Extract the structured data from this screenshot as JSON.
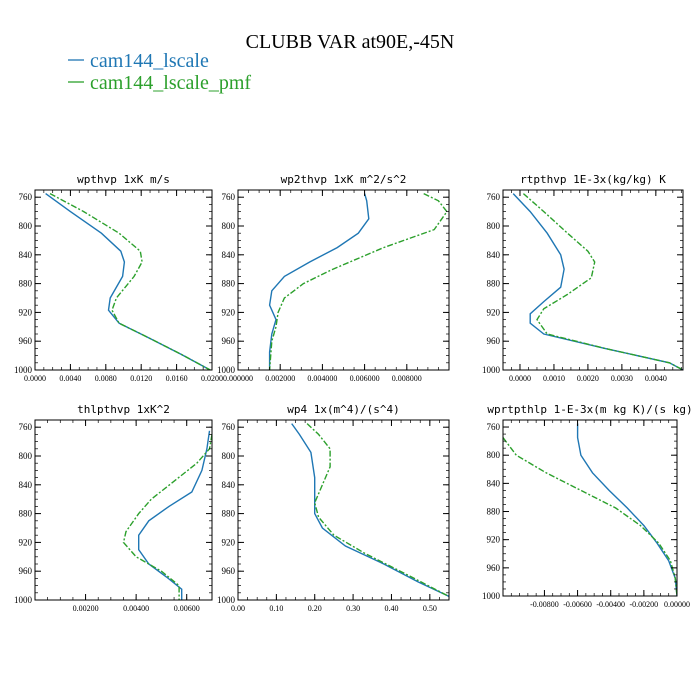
{
  "figure": {
    "title": "CLUBB VAR at90E,-45N"
  },
  "legend": [
    {
      "label": "cam144_lscale",
      "color": "#1f77b4",
      "dash": "solid"
    },
    {
      "label": "cam144_lscale_pmf",
      "color": "#2ca02c",
      "dash": "dashdot"
    }
  ],
  "chart_data": [
    {
      "type": "line",
      "title": "wpthvp  1xK m/s",
      "xlim": [
        0,
        0.02
      ],
      "ylim": [
        1000,
        750
      ],
      "xticks": [
        0,
        0.004,
        0.008,
        0.012,
        0.016,
        0.02
      ],
      "xticklabels": [
        "0.0000",
        "0.0040",
        "0.0080",
        "0.0120",
        "0.0160",
        "0.0200"
      ],
      "yticks": [
        760,
        800,
        840,
        880,
        920,
        960,
        1000
      ],
      "series": [
        {
          "name": "cam144_lscale",
          "points": [
            [
              0.0012,
              755
            ],
            [
              0.004,
              780
            ],
            [
              0.0075,
              810
            ],
            [
              0.0097,
              835
            ],
            [
              0.0101,
              850
            ],
            [
              0.0099,
              870
            ],
            [
              0.0085,
              900
            ],
            [
              0.0083,
              917
            ],
            [
              0.0095,
              935
            ],
            [
              0.0128,
              955
            ],
            [
              0.0165,
              978
            ],
            [
              0.0198,
              1000
            ]
          ]
        },
        {
          "name": "cam144_lscale_pmf",
          "points": [
            [
              0.0017,
              755
            ],
            [
              0.0055,
              780
            ],
            [
              0.0095,
              810
            ],
            [
              0.0119,
              835
            ],
            [
              0.0121,
              850
            ],
            [
              0.0112,
              870
            ],
            [
              0.0092,
              900
            ],
            [
              0.0087,
              917
            ],
            [
              0.0095,
              935
            ],
            [
              0.0128,
              955
            ],
            [
              0.0165,
              978
            ],
            [
              0.0198,
              1000
            ]
          ]
        }
      ]
    },
    {
      "type": "line",
      "title": "wp2thvp  1xK m^2/s^2",
      "xlim": [
        0,
        0.01
      ],
      "ylim": [
        1000,
        750
      ],
      "xticks": [
        0,
        0.002,
        0.004,
        0.006,
        0.008
      ],
      "xticklabels": [
        "0.000000",
        "0.002000",
        "0.004000",
        "0.006000",
        "0.008000"
      ],
      "yticks": [
        760,
        800,
        840,
        880,
        920,
        960,
        1000
      ],
      "series": [
        {
          "name": "cam144_lscale",
          "points": [
            [
              0.006,
              755
            ],
            [
              0.0061,
              765
            ],
            [
              0.0062,
              790
            ],
            [
              0.0057,
              810
            ],
            [
              0.0047,
              830
            ],
            [
              0.0034,
              850
            ],
            [
              0.0022,
              870
            ],
            [
              0.0016,
              890
            ],
            [
              0.0015,
              910
            ],
            [
              0.0018,
              930
            ],
            [
              0.0016,
              950
            ],
            [
              0.0015,
              975
            ],
            [
              0.0015,
              1000
            ]
          ]
        },
        {
          "name": "cam144_lscale_pmf",
          "points": [
            [
              0.0088,
              755
            ],
            [
              0.0095,
              765
            ],
            [
              0.0099,
              780
            ],
            [
              0.0093,
              805
            ],
            [
              0.0069,
              830
            ],
            [
              0.0045,
              860
            ],
            [
              0.0031,
              880
            ],
            [
              0.0022,
              900
            ],
            [
              0.0019,
              920
            ],
            [
              0.0018,
              940
            ],
            [
              0.0016,
              960
            ],
            [
              0.0015,
              1000
            ]
          ]
        }
      ]
    },
    {
      "type": "line",
      "title": "rtpthvp  1E-3x(kg/kg) K",
      "xlim": [
        -0.0005,
        0.0048
      ],
      "ylim": [
        1000,
        750
      ],
      "xticks": [
        0,
        0.001,
        0.002,
        0.003,
        0.004
      ],
      "xticklabels": [
        "0.0000",
        "0.0010",
        "0.0020",
        "0.0030",
        "0.0040"
      ],
      "yticks": [
        760,
        800,
        840,
        880,
        920,
        960,
        1000
      ],
      "series": [
        {
          "name": "cam144_lscale",
          "points": [
            [
              -0.0002,
              755
            ],
            [
              0.0003,
              780
            ],
            [
              0.0008,
              810
            ],
            [
              0.0012,
              840
            ],
            [
              0.0013,
              860
            ],
            [
              0.0012,
              885
            ],
            [
              0.0007,
              905
            ],
            [
              0.0003,
              922
            ],
            [
              0.0003,
              935
            ],
            [
              0.0007,
              950
            ],
            [
              0.0025,
              970
            ],
            [
              0.0044,
              990
            ],
            [
              0.0048,
              1000
            ]
          ]
        },
        {
          "name": "cam144_lscale_pmf",
          "points": [
            [
              0.0001,
              755
            ],
            [
              0.0007,
              780
            ],
            [
              0.0014,
              810
            ],
            [
              0.002,
              835
            ],
            [
              0.0022,
              850
            ],
            [
              0.0021,
              872
            ],
            [
              0.0014,
              895
            ],
            [
              0.0007,
              915
            ],
            [
              0.0005,
              930
            ],
            [
              0.0008,
              950
            ],
            [
              0.0025,
              970
            ],
            [
              0.0044,
              990
            ],
            [
              0.0048,
              1000
            ]
          ]
        }
      ]
    },
    {
      "type": "line",
      "title": "thlpthvp  1xK^2",
      "xlim": [
        0,
        0.007
      ],
      "ylim": [
        1000,
        750
      ],
      "xticks": [
        0.002,
        0.004,
        0.006
      ],
      "xticklabels": [
        "0.00200",
        "0.00400",
        "0.00600"
      ],
      "yticks": [
        760,
        800,
        840,
        880,
        920,
        960,
        1000
      ],
      "series": [
        {
          "name": "cam144_lscale",
          "points": [
            [
              0.0069,
              765
            ],
            [
              0.0068,
              790
            ],
            [
              0.0066,
              820
            ],
            [
              0.0062,
              850
            ],
            [
              0.0053,
              870
            ],
            [
              0.0045,
              890
            ],
            [
              0.0041,
              910
            ],
            [
              0.0041,
              930
            ],
            [
              0.0045,
              950
            ],
            [
              0.0052,
              968
            ],
            [
              0.0058,
              985
            ],
            [
              0.0058,
              1000
            ]
          ]
        },
        {
          "name": "cam144_lscale_pmf",
          "points": [
            [
              0.007,
              770
            ],
            [
              0.0069,
              790
            ],
            [
              0.0064,
              810
            ],
            [
              0.0055,
              835
            ],
            [
              0.0046,
              860
            ],
            [
              0.0041,
              880
            ],
            [
              0.0036,
              905
            ],
            [
              0.0035,
              920
            ],
            [
              0.004,
              940
            ],
            [
              0.005,
              960
            ],
            [
              0.0057,
              980
            ],
            [
              0.0057,
              1000
            ]
          ]
        }
      ]
    },
    {
      "type": "line",
      "title": "wp4  1x(m^4)/(s^4)",
      "xlim": [
        0,
        0.55
      ],
      "ylim": [
        1000,
        750
      ],
      "xticks": [
        0,
        0.1,
        0.2,
        0.3,
        0.4,
        0.5
      ],
      "xticklabels": [
        "0.00",
        "0.10",
        "0.20",
        "0.30",
        "0.40",
        "0.50"
      ],
      "yticks": [
        760,
        800,
        840,
        880,
        920,
        960,
        1000
      ],
      "series": [
        {
          "name": "cam144_lscale",
          "points": [
            [
              0.14,
              755
            ],
            [
              0.16,
              770
            ],
            [
              0.19,
              795
            ],
            [
              0.2,
              830
            ],
            [
              0.2,
              860
            ],
            [
              0.2,
              880
            ],
            [
              0.22,
              900
            ],
            [
              0.28,
              925
            ],
            [
              0.38,
              950
            ],
            [
              0.47,
              975
            ],
            [
              0.55,
              995
            ]
          ]
        },
        {
          "name": "cam144_lscale_pmf",
          "points": [
            [
              0.18,
              755
            ],
            [
              0.21,
              770
            ],
            [
              0.24,
              790
            ],
            [
              0.24,
              815
            ],
            [
              0.22,
              840
            ],
            [
              0.2,
              865
            ],
            [
              0.21,
              885
            ],
            [
              0.25,
              910
            ],
            [
              0.33,
              935
            ],
            [
              0.43,
              962
            ],
            [
              0.55,
              995
            ]
          ]
        }
      ]
    },
    {
      "type": "line",
      "title": "wprtpthlp  1-E-3x(m kg K)/(s kg)",
      "xlim": [
        -0.0105,
        0
      ],
      "ylim": [
        1000,
        750
      ],
      "xticks": [
        -0.008,
        -0.006,
        -0.004,
        -0.002,
        0
      ],
      "xticklabels": [
        "-0.00800",
        "-0.00600",
        "-0.00400",
        "-0.00200",
        "0.00000"
      ],
      "yticks": [
        760,
        800,
        840,
        880,
        920,
        960,
        1000
      ],
      "series": [
        {
          "name": "cam144_lscale",
          "points": [
            [
              -0.006,
              755
            ],
            [
              -0.006,
              775
            ],
            [
              -0.0058,
              800
            ],
            [
              -0.0051,
              825
            ],
            [
              -0.0041,
              850
            ],
            [
              -0.003,
              875
            ],
            [
              -0.002,
              900
            ],
            [
              -0.0012,
              925
            ],
            [
              -0.0005,
              950
            ],
            [
              -0.0001,
              975
            ],
            [
              0,
              1000
            ]
          ]
        },
        {
          "name": "cam144_lscale_pmf",
          "points": [
            [
              -0.0105,
              775
            ],
            [
              -0.0097,
              800
            ],
            [
              -0.0079,
              825
            ],
            [
              -0.0058,
              850
            ],
            [
              -0.0037,
              875
            ],
            [
              -0.0022,
              900
            ],
            [
              -0.0011,
              925
            ],
            [
              -0.0004,
              950
            ],
            [
              -0.0001,
              975
            ],
            [
              0,
              1000
            ]
          ]
        }
      ]
    }
  ]
}
